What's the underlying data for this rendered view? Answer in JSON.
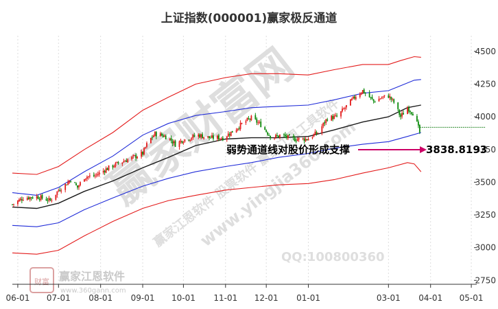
{
  "watermark": {
    "main": "赢家财富网",
    "line2": "赢家江恩软件 股票软件 赢家江恩工具软件",
    "site": "www.yingjia360.com",
    "qq": "QQ:100800360",
    "logo_text": "赢家江恩软件",
    "logo_url": "www.360gann.com",
    "seal": "财富"
  },
  "chart_data": {
    "type": "line",
    "title": "上证指数(000001)赢家极反通道",
    "x_ticks": [
      "06-01",
      "07-01",
      "08-01",
      "09-01",
      "10-01",
      "11-01",
      "12-01",
      "01-01",
      "03-01",
      "04-01",
      "05-01"
    ],
    "y_ticks": [
      2750,
      3000,
      3250,
      3500,
      3750,
      4000,
      4250,
      4500
    ],
    "ylim": [
      2720,
      4620
    ],
    "xlim": [
      "2020-05-28",
      "2021-05-05"
    ],
    "annotation": "弱势通道线对股价形成支撑",
    "current_value": "3838.8193",
    "support_level": 3920,
    "colors": {
      "upper_outer": "#e31a1a",
      "upper_inner": "#1f2bd8",
      "middle": "#1a1a1a",
      "lower_inner": "#1f2bd8",
      "lower_outer": "#e31a1a",
      "candle_up": "#e31a1a",
      "candle_down": "#0a8a0a",
      "arrow": "#cc0066",
      "support": "#2a8a2a"
    },
    "series": [
      {
        "key": "upper_outer",
        "x": [
          "2020-05-28",
          "2020-06-15",
          "2020-07-01",
          "2020-07-20",
          "2020-08-10",
          "2020-09-01",
          "2020-09-20",
          "2020-10-10",
          "2020-11-01",
          "2020-11-20",
          "2020-12-10",
          "2021-01-01",
          "2021-01-20",
          "2021-02-10",
          "2021-03-01",
          "2021-03-10",
          "2021-03-20",
          "2021-03-25"
        ],
        "y": [
          3570,
          3560,
          3620,
          3750,
          3880,
          4050,
          4150,
          4250,
          4300,
          4330,
          4330,
          4320,
          4360,
          4400,
          4400,
          4430,
          4460,
          4455
        ]
      },
      {
        "key": "upper_inner",
        "x": [
          "2020-05-28",
          "2020-06-15",
          "2020-07-01",
          "2020-07-20",
          "2020-08-10",
          "2020-09-01",
          "2020-09-20",
          "2020-10-10",
          "2020-11-01",
          "2020-11-20",
          "2020-12-10",
          "2021-01-01",
          "2021-01-20",
          "2021-02-10",
          "2021-03-01",
          "2021-03-20",
          "2021-03-25"
        ],
        "y": [
          3420,
          3400,
          3460,
          3580,
          3700,
          3860,
          3950,
          4010,
          4040,
          4070,
          4080,
          4090,
          4130,
          4180,
          4200,
          4280,
          4285
        ]
      },
      {
        "key": "middle",
        "x": [
          "2020-05-28",
          "2020-06-15",
          "2020-07-01",
          "2020-07-20",
          "2020-08-10",
          "2020-09-01",
          "2020-09-20",
          "2020-10-10",
          "2020-11-01",
          "2020-11-20",
          "2020-12-10",
          "2021-01-01",
          "2021-01-20",
          "2021-02-10",
          "2021-03-01",
          "2021-03-15",
          "2021-03-25"
        ],
        "y": [
          3310,
          3300,
          3340,
          3430,
          3510,
          3610,
          3690,
          3780,
          3830,
          3840,
          3840,
          3850,
          3900,
          3960,
          4000,
          4070,
          4090
        ]
      },
      {
        "key": "lower_inner",
        "x": [
          "2020-05-28",
          "2020-06-15",
          "2020-07-01",
          "2020-07-20",
          "2020-08-10",
          "2020-09-01",
          "2020-09-20",
          "2020-10-10",
          "2020-11-01",
          "2020-11-20",
          "2020-12-10",
          "2021-01-01",
          "2021-01-20",
          "2021-02-10",
          "2021-03-01",
          "2021-03-15",
          "2021-03-25"
        ],
        "y": [
          3170,
          3160,
          3190,
          3290,
          3380,
          3470,
          3530,
          3580,
          3620,
          3650,
          3690,
          3720,
          3760,
          3790,
          3810,
          3850,
          3880
        ]
      },
      {
        "key": "lower_outer",
        "x": [
          "2020-05-28",
          "2020-06-15",
          "2020-07-01",
          "2020-07-20",
          "2020-08-10",
          "2020-09-01",
          "2020-09-20",
          "2020-10-10",
          "2020-11-01",
          "2020-11-20",
          "2020-12-10",
          "2021-01-01",
          "2021-01-20",
          "2021-02-10",
          "2021-03-01",
          "2021-03-15",
          "2021-03-20",
          "2021-03-25"
        ],
        "y": [
          2960,
          2950,
          2980,
          3090,
          3200,
          3300,
          3360,
          3400,
          3440,
          3460,
          3480,
          3490,
          3520,
          3570,
          3610,
          3650,
          3640,
          3580
        ]
      }
    ],
    "price": {
      "x": [
        "2020-05-28",
        "2020-06-05",
        "2020-06-15",
        "2020-06-25",
        "2020-07-01",
        "2020-07-06",
        "2020-07-10",
        "2020-07-15",
        "2020-07-20",
        "2020-07-28",
        "2020-08-05",
        "2020-08-15",
        "2020-08-25",
        "2020-09-01",
        "2020-09-05",
        "2020-09-10",
        "2020-09-15",
        "2020-09-20",
        "2020-09-25",
        "2020-09-30",
        "2020-10-12",
        "2020-10-20",
        "2020-10-30",
        "2020-11-05",
        "2020-11-10",
        "2020-11-15",
        "2020-11-20",
        "2020-11-27",
        "2020-12-05",
        "2020-12-12",
        "2020-12-20",
        "2020-12-31",
        "2021-01-08",
        "2021-01-15",
        "2021-01-22",
        "2021-01-29",
        "2021-02-05",
        "2021-02-10",
        "2021-02-18",
        "2021-02-25",
        "2021-03-01",
        "2021-03-05",
        "2021-03-10",
        "2021-03-15",
        "2021-03-20",
        "2021-03-24"
      ],
      "y": [
        3330,
        3380,
        3390,
        3360,
        3440,
        3480,
        3520,
        3460,
        3540,
        3550,
        3600,
        3650,
        3690,
        3720,
        3810,
        3870,
        3860,
        3840,
        3790,
        3820,
        3860,
        3840,
        3840,
        3880,
        3920,
        3960,
        3990,
        3940,
        3840,
        3860,
        3830,
        3830,
        3880,
        3990,
        4000,
        4080,
        4160,
        4200,
        4120,
        4150,
        4160,
        4110,
        4000,
        4070,
        4020,
        3880
      ]
    }
  }
}
